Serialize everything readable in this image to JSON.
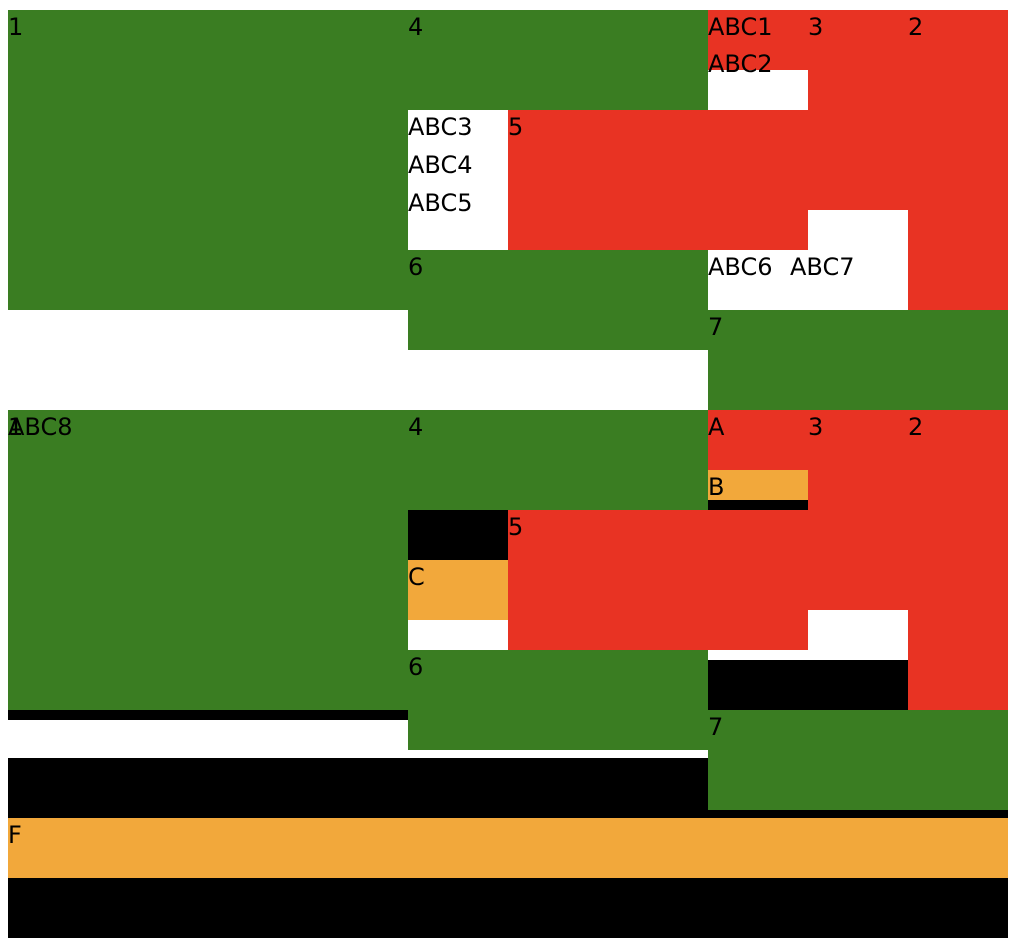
{
  "colors": {
    "green": "#3a7d22",
    "red": "#e83323",
    "orange": "#f2a83b",
    "black": "#000000",
    "white": "#ffffff"
  },
  "top": {
    "cell1": "1",
    "cell4": "4",
    "cell3": "3",
    "cell2": "2",
    "cell5": "5",
    "cell6": "6",
    "cell7": "7",
    "abc1": "ABC1",
    "abc2": "ABC2",
    "abc3": "ABC3",
    "abc4": "ABC4",
    "abc5": "ABC5",
    "abc6": "ABC6",
    "abc7": "ABC7"
  },
  "bottom": {
    "cell1": "1",
    "abc8": "ABC8",
    "cell4": "4",
    "cellA": "A",
    "cell3": "3",
    "cell2": "2",
    "cellB": "B",
    "cell5": "5",
    "cellC": "C",
    "cell6": "6",
    "cell7": "7",
    "cellF": "F"
  }
}
